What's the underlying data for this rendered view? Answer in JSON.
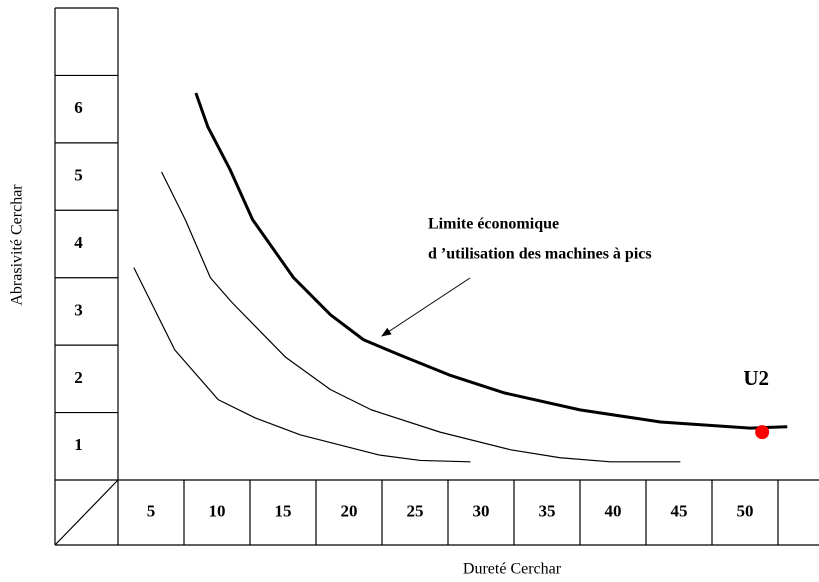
{
  "chart_data": {
    "type": "line",
    "xlabel": "Dureté Cerchar",
    "ylabel": "Abrasivité Cerchar",
    "xlim": [
      2.5,
      55
    ],
    "xticks": [
      5,
      10,
      15,
      20,
      25,
      30,
      35,
      40,
      45,
      50
    ],
    "ylim": [
      0.5,
      7.5
    ],
    "yticks": [
      1,
      2,
      3,
      4,
      5,
      6
    ],
    "series": [
      {
        "color": "#000000",
        "width": 3,
        "x": [
          8.4,
          9.3,
          11.0,
          12.7,
          15.8,
          18.6,
          21.1,
          23.9,
          27.7,
          31.8,
          37.5,
          43.6,
          50.4,
          53.2
        ],
        "values": [
          6.24,
          5.74,
          5.1,
          4.36,
          3.5,
          2.95,
          2.58,
          2.35,
          2.05,
          1.79,
          1.54,
          1.36,
          1.27,
          1.29
        ]
      },
      {
        "color": "#000000",
        "width": 1.2,
        "x": [
          5.8,
          7.6,
          9.5,
          11.1,
          15.2,
          18.6,
          21.7,
          26.9,
          32.2,
          36.0,
          39.8,
          45.1
        ],
        "values": [
          5.07,
          4.36,
          3.5,
          3.14,
          2.32,
          1.84,
          1.54,
          1.21,
          0.95,
          0.83,
          0.77,
          0.77
        ]
      },
      {
        "color": "#000000",
        "width": 1.2,
        "x": [
          3.7,
          6.8,
          10.1,
          12.9,
          16.3,
          19.3,
          22.3,
          25.4,
          29.2
        ],
        "values": [
          3.65,
          2.43,
          1.69,
          1.42,
          1.17,
          1.02,
          0.87,
          0.79,
          0.77
        ]
      }
    ],
    "points": [
      {
        "label": "U2",
        "x": 51.3,
        "y": 1.21,
        "color": "#ff0000"
      }
    ],
    "annotation": [
      "Limite économique",
      "d ’utilisation des machines à pics"
    ]
  }
}
